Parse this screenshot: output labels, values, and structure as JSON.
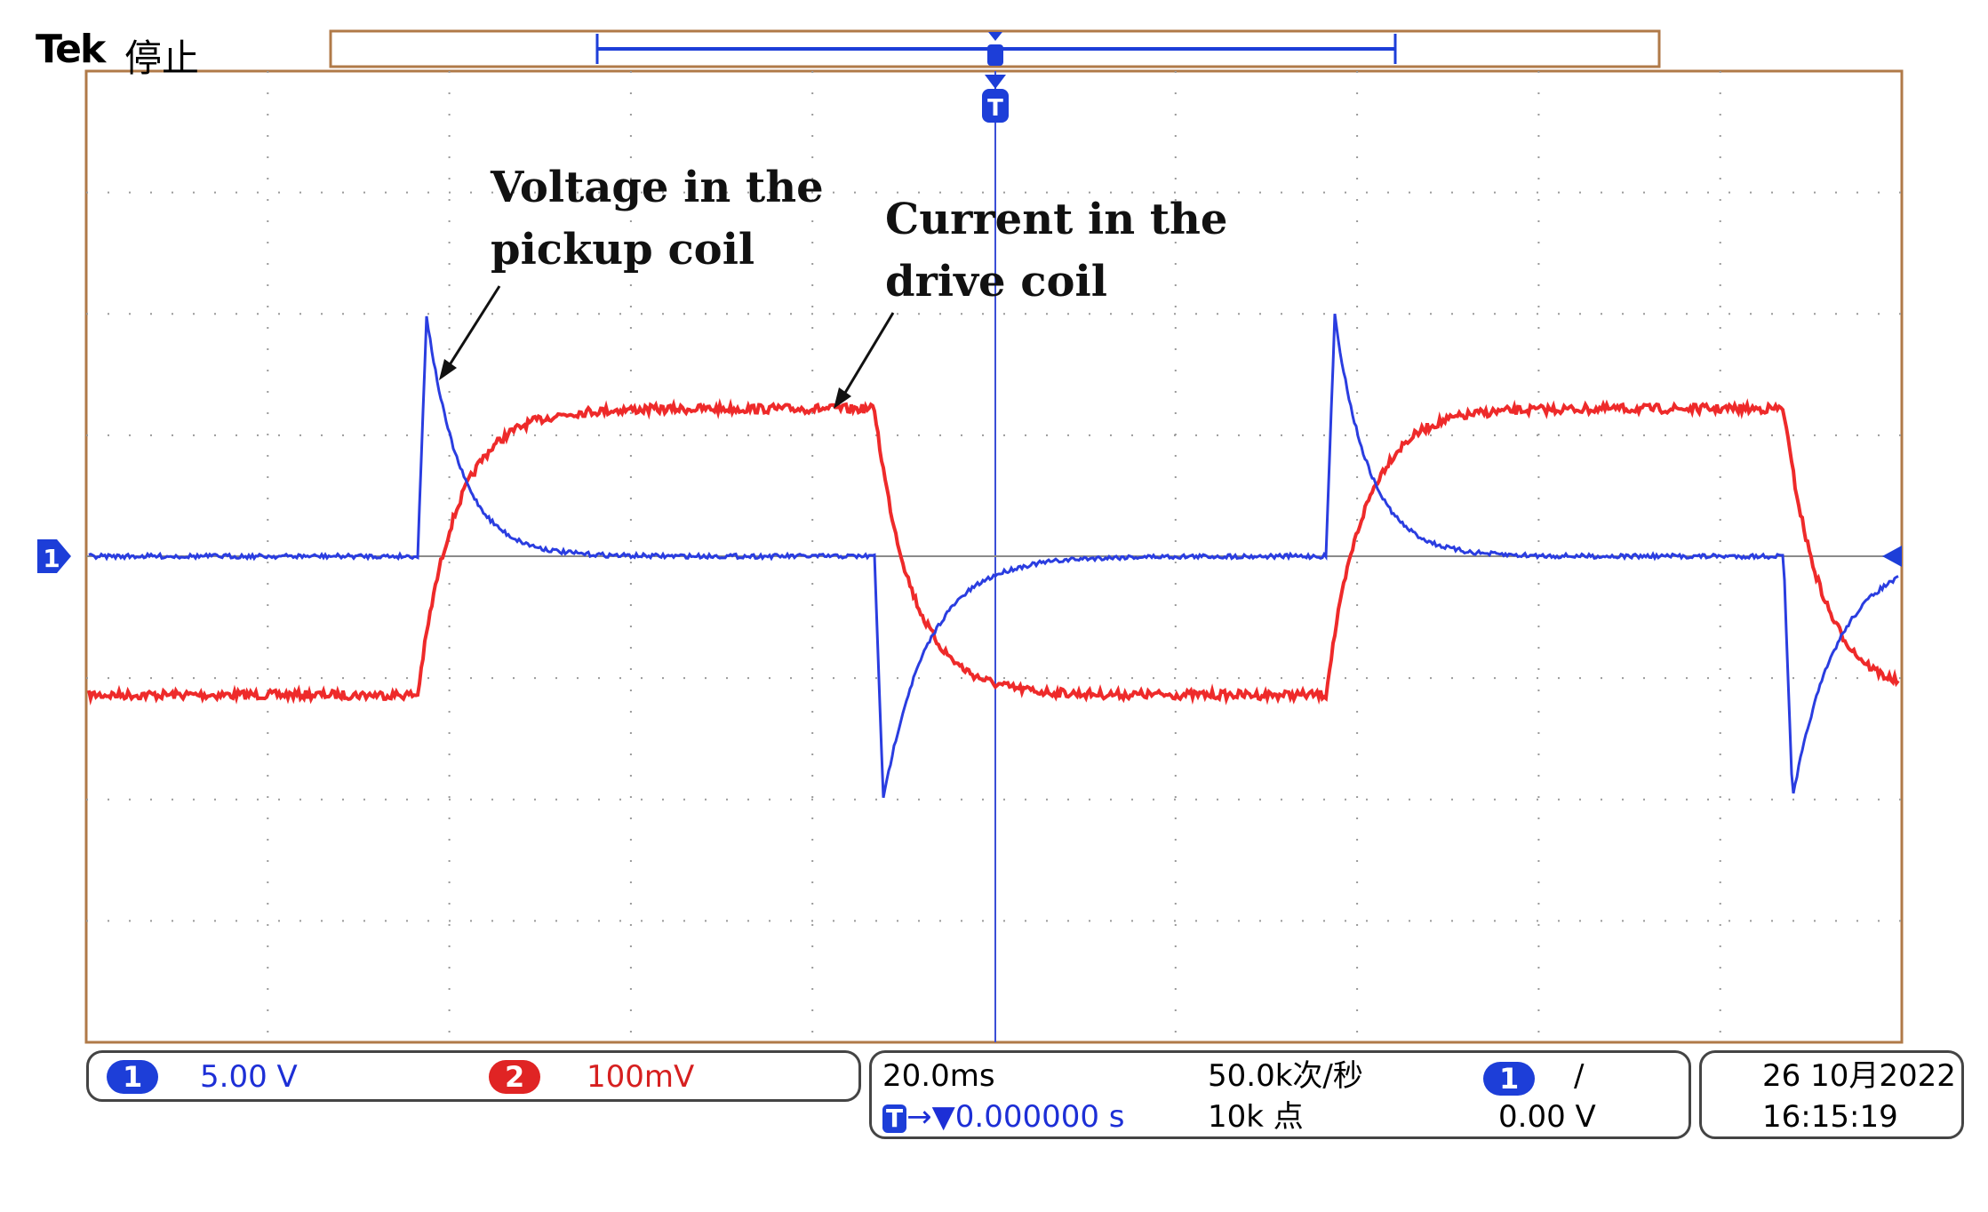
{
  "header": {
    "brand": "Tek",
    "run_state": "停止"
  },
  "annotations": {
    "pickup_line1": "Voltage in the",
    "pickup_line2": "pickup coil",
    "drive_line1": "Current in the",
    "drive_line2": "drive coil"
  },
  "channel_marker": "1",
  "trigger_marker": "T",
  "channels": {
    "ch1": {
      "label": "1",
      "scale": "5.00 V",
      "color": "#1d3ed8"
    },
    "ch2": {
      "label": "2",
      "scale": "100mV",
      "color": "#e02424"
    }
  },
  "timebase": {
    "time_per_div": "20.0ms",
    "trigger_position": "0.000000 s",
    "sample_rate": "50.0k次/秒",
    "record_length": "10k 点"
  },
  "trigger": {
    "source": "1",
    "slope": "/",
    "level": "0.00 V"
  },
  "datetime": {
    "date": "26 10月2022",
    "time": "16:15:19"
  },
  "colors": {
    "ch1_trace": "#2a3de0",
    "ch2_trace": "#ee2a2a",
    "grid_border": "#b07a48",
    "grid_dots": "#8a8a8a",
    "center_axis": "#3b4fd6"
  }
}
